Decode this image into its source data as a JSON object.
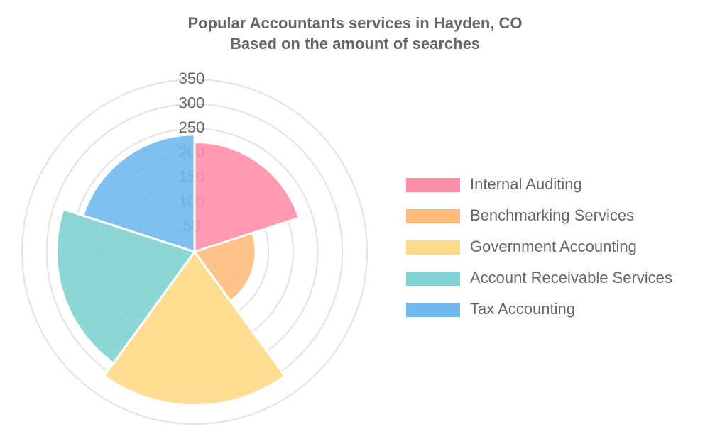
{
  "chart_data": {
    "type": "polarArea",
    "title": "Popular Accountants services in Hayden, CO",
    "subtitle": "Based on the amount of searches",
    "categories": [
      "Internal Auditing",
      "Benchmarking Services",
      "Government Accounting",
      "Account Receivable Services",
      "Tax Accounting"
    ],
    "values": [
      223,
      124,
      312,
      280,
      238
    ],
    "colors": [
      "#ff8fa8",
      "#ffbb7c",
      "#ffda88",
      "#80d3d2",
      "#70b9ee"
    ],
    "rlim": [
      0,
      350
    ],
    "rticks": [
      50,
      100,
      150,
      200,
      250,
      300,
      350
    ],
    "grid": true,
    "legend": "right"
  }
}
